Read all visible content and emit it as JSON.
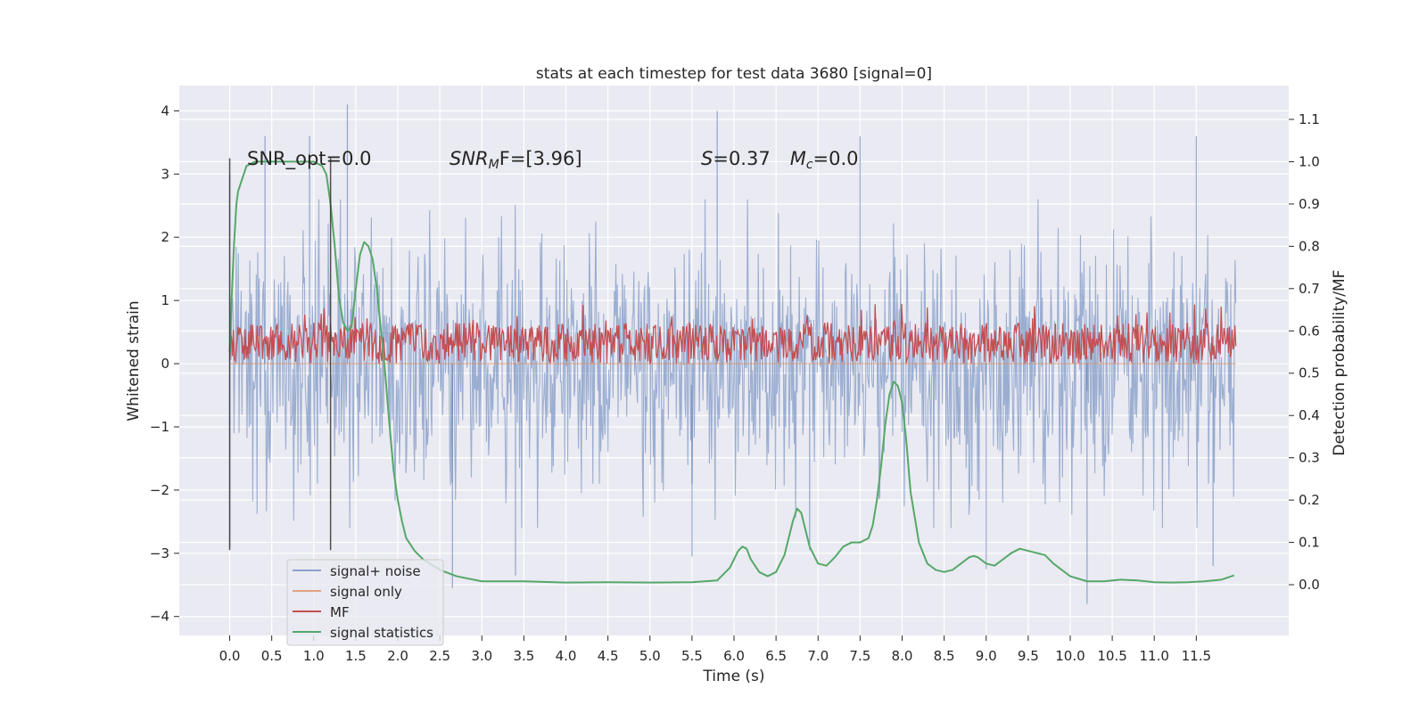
{
  "chart_data": {
    "type": "line",
    "title": "stats at each timestep for test data 3680 [signal=0]",
    "xlabel": "Time (s)",
    "ylabel": "Whitened strain",
    "y2label": "Detection probability/MF",
    "xlim": [
      -0.6,
      12.6
    ],
    "ylim": [
      -4.3,
      4.4
    ],
    "y2lim": [
      -0.12,
      1.18
    ],
    "x_ticks": [
      "0.0",
      "0.5",
      "1.0",
      "1.5",
      "2.0",
      "2.5",
      "3.0",
      "3.5",
      "4.0",
      "4.5",
      "5.0",
      "5.5",
      "6.0",
      "6.5",
      "7.0",
      "7.5",
      "8.0",
      "8.5",
      "9.0",
      "9.5",
      "10.0",
      "10.5",
      "11.0",
      "11.5"
    ],
    "y_ticks": [
      "4",
      "3",
      "2",
      "1",
      "0",
      "−1",
      "−2",
      "−3",
      "−4"
    ],
    "y2_ticks": [
      "1.1",
      "1.0",
      "0.9",
      "0.8",
      "0.7",
      "0.6",
      "0.5",
      "0.4",
      "0.3",
      "0.2",
      "0.1",
      "0.0"
    ],
    "grid": true,
    "legend_position": "lower-left",
    "colors": {
      "background": "#eaeaf2",
      "grid": "#ffffff",
      "noise": "#4c72b0",
      "signal_only": "#dd8452",
      "mf": "#c44e52",
      "stats": "#55a868",
      "markers": "#333333"
    },
    "annotations": {
      "snr_opt": "SNR_opt=0.0",
      "snr_mf_prefix": "SNR",
      "snr_mf_sub": "M",
      "snr_mf_suffix": "F=[3.96]",
      "s_symbol": "S",
      "s_value": "=0.37",
      "mc_symbol": "M",
      "mc_sub": "c",
      "mc_value": "=0.0"
    },
    "vertical_markers": [
      0.0,
      1.2
    ],
    "series": [
      {
        "name": "signal+ noise",
        "kind": "noise",
        "x_range": [
          0.0,
          11.97
        ],
        "typical_range": [
          -1.8,
          1.8
        ],
        "notable_peaks": [
          [
            0.0,
            3.0
          ],
          [
            0.42,
            3.6
          ],
          [
            0.95,
            3.6
          ],
          [
            1.4,
            4.1
          ],
          [
            5.8,
            4.0
          ],
          [
            7.5,
            3.6
          ],
          [
            11.5,
            3.6
          ]
        ],
        "notable_troughs": [
          [
            0.0,
            -2.9
          ],
          [
            2.65,
            -3.55
          ],
          [
            3.4,
            -3.35
          ],
          [
            5.5,
            -3.05
          ],
          [
            6.9,
            -2.95
          ],
          [
            9.0,
            -3.25
          ],
          [
            10.2,
            -3.8
          ],
          [
            11.7,
            -3.2
          ]
        ]
      },
      {
        "name": "signal only",
        "kind": "flat",
        "x": [
          0.0,
          11.97
        ],
        "y": [
          0.0,
          0.0
        ]
      },
      {
        "name": "MF",
        "kind": "band",
        "x_range": [
          0.0,
          11.97
        ],
        "typical_range": [
          0.0,
          0.65
        ],
        "max_peak": 0.95
      },
      {
        "name": "signal statistics",
        "kind": "line",
        "axis": "right",
        "x": [
          0.0,
          0.02,
          0.05,
          0.08,
          0.1,
          0.15,
          0.2,
          0.3,
          0.5,
          0.7,
          0.9,
          1.0,
          1.1,
          1.15,
          1.2,
          1.25,
          1.3,
          1.35,
          1.4,
          1.45,
          1.5,
          1.55,
          1.6,
          1.65,
          1.7,
          1.75,
          1.8,
          1.85,
          1.9,
          1.95,
          2.0,
          2.05,
          2.1,
          2.2,
          2.3,
          2.5,
          2.7,
          3.0,
          3.5,
          4.0,
          4.5,
          5.0,
          5.5,
          5.8,
          5.95,
          6.05,
          6.1,
          6.15,
          6.2,
          6.3,
          6.4,
          6.5,
          6.6,
          6.7,
          6.75,
          6.8,
          6.85,
          6.9,
          7.0,
          7.1,
          7.2,
          7.3,
          7.4,
          7.5,
          7.6,
          7.65,
          7.7,
          7.75,
          7.8,
          7.85,
          7.9,
          7.95,
          8.0,
          8.05,
          8.1,
          8.2,
          8.3,
          8.4,
          8.5,
          8.6,
          8.7,
          8.8,
          8.85,
          8.9,
          9.0,
          9.1,
          9.2,
          9.3,
          9.4,
          9.5,
          9.6,
          9.7,
          9.8,
          10.0,
          10.2,
          10.4,
          10.6,
          10.8,
          11.0,
          11.2,
          11.4,
          11.6,
          11.8,
          11.95
        ],
        "y": [
          0.55,
          0.66,
          0.8,
          0.9,
          0.93,
          0.96,
          0.99,
          1.0,
          1.0,
          1.0,
          1.0,
          1.0,
          0.99,
          0.97,
          0.9,
          0.8,
          0.68,
          0.62,
          0.6,
          0.61,
          0.7,
          0.78,
          0.81,
          0.8,
          0.77,
          0.7,
          0.6,
          0.5,
          0.38,
          0.27,
          0.2,
          0.15,
          0.11,
          0.08,
          0.06,
          0.035,
          0.02,
          0.008,
          0.008,
          0.005,
          0.006,
          0.005,
          0.006,
          0.01,
          0.04,
          0.08,
          0.09,
          0.085,
          0.06,
          0.03,
          0.02,
          0.03,
          0.07,
          0.15,
          0.18,
          0.17,
          0.13,
          0.09,
          0.05,
          0.045,
          0.065,
          0.09,
          0.1,
          0.1,
          0.11,
          0.14,
          0.2,
          0.28,
          0.38,
          0.45,
          0.48,
          0.47,
          0.43,
          0.34,
          0.22,
          0.1,
          0.05,
          0.035,
          0.03,
          0.035,
          0.05,
          0.065,
          0.068,
          0.065,
          0.05,
          0.045,
          0.06,
          0.075,
          0.085,
          0.08,
          0.075,
          0.07,
          0.05,
          0.02,
          0.008,
          0.008,
          0.012,
          0.01,
          0.006,
          0.005,
          0.006,
          0.008,
          0.012,
          0.022
        ]
      }
    ]
  }
}
